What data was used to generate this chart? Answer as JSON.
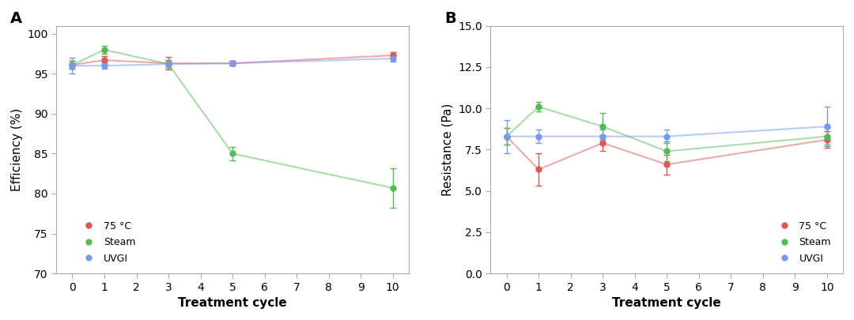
{
  "x_ticks": [
    0,
    1,
    2,
    3,
    4,
    5,
    6,
    7,
    8,
    9,
    10
  ],
  "x_data": [
    0,
    1,
    3,
    5,
    10
  ],
  "A_red_y": [
    96.1,
    96.7,
    96.3,
    96.3,
    97.3
  ],
  "A_red_yerr": [
    0.5,
    0.5,
    0.8,
    0.3,
    0.4
  ],
  "A_green_y": [
    96.1,
    98.0,
    96.2,
    85.0,
    80.7
  ],
  "A_green_yerr": [
    0.5,
    0.5,
    0.5,
    0.8,
    2.5
  ],
  "A_blue_y": [
    96.0,
    96.0,
    96.2,
    96.3,
    96.9
  ],
  "A_blue_yerr": [
    1.0,
    0.4,
    0.3,
    0.3,
    0.4
  ],
  "B_red_y": [
    8.3,
    6.3,
    7.9,
    6.6,
    8.1
  ],
  "B_red_yerr": [
    0.5,
    1.0,
    0.5,
    0.6,
    0.5
  ],
  "B_green_y": [
    8.3,
    10.1,
    8.9,
    7.4,
    8.3
  ],
  "B_green_yerr": [
    0.5,
    0.3,
    0.8,
    0.6,
    0.5
  ],
  "B_blue_y": [
    8.3,
    8.3,
    8.3,
    8.3,
    8.9
  ],
  "B_blue_yerr": [
    1.0,
    0.4,
    0.4,
    0.4,
    1.2
  ],
  "color_red": "#e05555",
  "color_green": "#55bb55",
  "color_blue": "#7799ee",
  "panel_A_label": "A",
  "panel_B_label": "B",
  "A_ylabel": "Efficiency (%)",
  "B_ylabel": "Resistance (Pa)",
  "xlabel": "Treatment cycle",
  "A_ylim": [
    70,
    101
  ],
  "A_yticks": [
    70,
    75,
    80,
    85,
    90,
    95,
    100
  ],
  "B_ylim": [
    0,
    15.0
  ],
  "B_yticks": [
    0.0,
    2.5,
    5.0,
    7.5,
    10.0,
    12.5,
    15.0
  ],
  "legend_labels": [
    "75 °C",
    "Steam",
    "UVGI"
  ],
  "markersize": 5,
  "linewidth": 1.5,
  "capsize": 3,
  "elinewidth": 1.0,
  "tick_labelsize": 10,
  "axis_labelsize": 11,
  "panel_labelsize": 14
}
